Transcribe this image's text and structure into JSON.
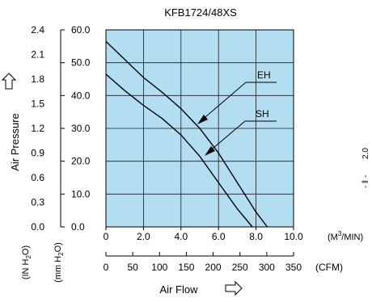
{
  "chart_data": {
    "type": "line",
    "title": "KFB1724/48XS",
    "xlabel": "Air Flow",
    "ylabel": "Air Pressure",
    "xlim": [
      0,
      10
    ],
    "ylim": [
      0,
      60
    ],
    "grid": true,
    "x_ticks": [
      "0",
      "2.0",
      "4.0",
      "6.0",
      "8.0",
      "10.0"
    ],
    "x_unit": "(M3/MIN)",
    "x_ticks_cfm": [
      "0",
      "50",
      "100",
      "150",
      "200",
      "250",
      "300",
      "350"
    ],
    "x_unit_cfm": "(CFM)",
    "y_ticks_mm": [
      "0.0",
      "10.0",
      "20.0",
      "30.0",
      "40.0",
      "50.0",
      "60.0"
    ],
    "y_unit_mm": "(mm H2O)",
    "y_ticks_in": [
      "0.0",
      "0.3",
      "0.6",
      "0.9",
      "1.2",
      "1.5",
      "1.8",
      "2.1",
      "2.4"
    ],
    "y_unit_in": "(IN H2O)",
    "series": [
      {
        "name": "EH",
        "x": [
          0,
          1,
          2,
          3,
          4,
          5,
          6,
          7,
          8,
          8.6
        ],
        "y": [
          56.5,
          51,
          45.5,
          41,
          36,
          30,
          22.5,
          13.5,
          4.5,
          0
        ]
      },
      {
        "name": "SH",
        "x": [
          0,
          1,
          2,
          3,
          4,
          5,
          6,
          7,
          7.8
        ],
        "y": [
          46.5,
          41.5,
          37,
          33,
          28,
          21.5,
          13.5,
          5.5,
          0
        ]
      }
    ],
    "styles": {
      "plot_bg": "#b3ddf0",
      "grid_color": "#1a1a1a",
      "line_color": "#000000"
    }
  },
  "annotations": {
    "eh_label": "EH",
    "sh_label": "SH",
    "right_edge_text": "2.0"
  }
}
